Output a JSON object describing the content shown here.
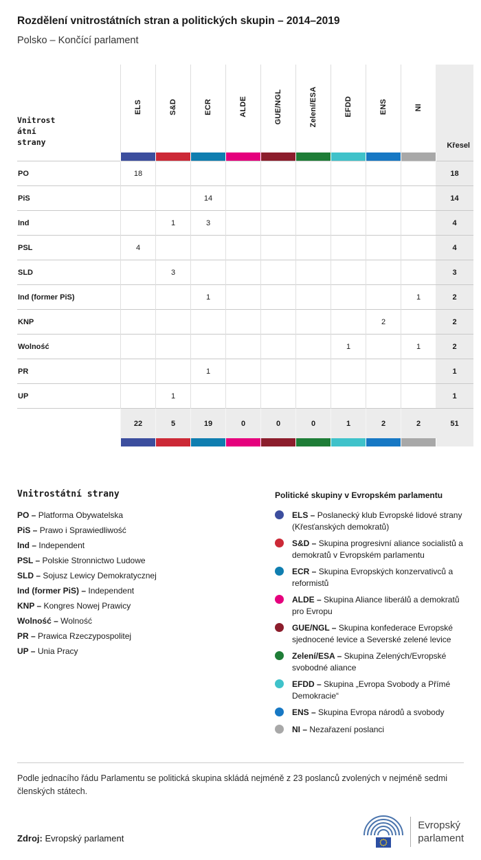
{
  "header": {
    "title": "Rozdělení vnitrostátních stran a politických skupin – 2014–2019",
    "subtitle": "Polsko – Končící parlament"
  },
  "chart_data": {
    "type": "table",
    "title": "Rozdělení vnitrostátních stran a politických skupin – 2014–2019",
    "subtitle": "Polsko – Končící parlament",
    "corner_label_lines": [
      "Vnitrost",
      "átní",
      "strany"
    ],
    "seats_label": "Křesel",
    "columns": [
      {
        "label": "ELS",
        "color": "#3c4e9e"
      },
      {
        "label": "S&D",
        "color": "#cc2937"
      },
      {
        "label": "ECR",
        "color": "#0f7eb0"
      },
      {
        "label": "ALDE",
        "color": "#e5007d"
      },
      {
        "label": "GUE/NGL",
        "color": "#8c1d2c"
      },
      {
        "label": "Zelení/ESA",
        "color": "#1e7d37"
      },
      {
        "label": "EFDD",
        "color": "#3fc2ca"
      },
      {
        "label": "ENS",
        "color": "#1778c4"
      },
      {
        "label": "NI",
        "color": "#a8a8a8"
      }
    ],
    "rows": [
      {
        "party": "PO",
        "values": [
          "18",
          "",
          "",
          "",
          "",
          "",
          "",
          "",
          ""
        ],
        "total": "18"
      },
      {
        "party": "PiS",
        "values": [
          "",
          "",
          "14",
          "",
          "",
          "",
          "",
          "",
          ""
        ],
        "total": "14"
      },
      {
        "party": "Ind",
        "values": [
          "",
          "1",
          "3",
          "",
          "",
          "",
          "",
          "",
          ""
        ],
        "total": "4"
      },
      {
        "party": "PSL",
        "values": [
          "4",
          "",
          "",
          "",
          "",
          "",
          "",
          "",
          ""
        ],
        "total": "4"
      },
      {
        "party": "SLD",
        "values": [
          "",
          "3",
          "",
          "",
          "",
          "",
          "",
          "",
          ""
        ],
        "total": "3"
      },
      {
        "party": "Ind (former PiS)",
        "values": [
          "",
          "",
          "1",
          "",
          "",
          "",
          "",
          "",
          "1"
        ],
        "total": "2"
      },
      {
        "party": "KNP",
        "values": [
          "",
          "",
          "",
          "",
          "",
          "",
          "",
          "2",
          ""
        ],
        "total": "2"
      },
      {
        "party": "Wolność",
        "values": [
          "",
          "",
          "",
          "",
          "",
          "",
          "1",
          "",
          "1"
        ],
        "total": "2"
      },
      {
        "party": "PR",
        "values": [
          "",
          "",
          "1",
          "",
          "",
          "",
          "",
          "",
          ""
        ],
        "total": "1"
      },
      {
        "party": "UP",
        "values": [
          "",
          "1",
          "",
          "",
          "",
          "",
          "",
          "",
          ""
        ],
        "total": "1"
      }
    ],
    "column_totals": [
      "22",
      "5",
      "19",
      "0",
      "0",
      "0",
      "1",
      "2",
      "2"
    ],
    "grand_total": "51"
  },
  "legend_parties": {
    "title": "Vnitrostátní strany",
    "items": [
      {
        "abbr": "PO –",
        "name": "Platforma Obywatelska"
      },
      {
        "abbr": "PiS –",
        "name": "Prawo i Sprawiedliwość"
      },
      {
        "abbr": "Ind –",
        "name": "Independent"
      },
      {
        "abbr": "PSL –",
        "name": "Polskie Stronnictwo Ludowe"
      },
      {
        "abbr": "SLD –",
        "name": "Sojusz Lewicy Demokratycznej"
      },
      {
        "abbr": "Ind (former PiS) –",
        "name": "Independent"
      },
      {
        "abbr": "KNP –",
        "name": "Kongres Nowej Prawicy"
      },
      {
        "abbr": "Wolność –",
        "name": "Wolność"
      },
      {
        "abbr": "PR –",
        "name": "Prawica Rzeczypospolitej"
      },
      {
        "abbr": "UP –",
        "name": "Unia Pracy"
      }
    ]
  },
  "legend_groups": {
    "title": "Politické skupiny v Evropském parlamentu",
    "items": [
      {
        "abbr": "ELS –",
        "name": "Poslanecký klub Evropské lidové strany (Křesťanských demokratů)",
        "color": "#3c4e9e"
      },
      {
        "abbr": "S&D –",
        "name": "Skupina progresivní aliance socialistů a demokratů v Evropském parlamentu",
        "color": "#cc2937"
      },
      {
        "abbr": "ECR –",
        "name": "Skupina Evropských konzervativců a reformistů",
        "color": "#0f7eb0"
      },
      {
        "abbr": "ALDE –",
        "name": "Skupina Aliance liberálů a demokratů pro Evropu",
        "color": "#e5007d"
      },
      {
        "abbr": "GUE/NGL –",
        "name": "Skupina konfederace Evropské sjednocené levice a Severské zelené levice",
        "color": "#8c1d2c"
      },
      {
        "abbr": "Zelení/ESA –",
        "name": "Skupina Zelených/Evropské svobodné aliance",
        "color": "#1e7d37"
      },
      {
        "abbr": "EFDD –",
        "name": "Skupina „Evropa Svobody a Přímé Demokracie“",
        "color": "#3fc2ca"
      },
      {
        "abbr": "ENS –",
        "name": "Skupina Evropa národů a svobody",
        "color": "#1778c4"
      },
      {
        "abbr": "NI –",
        "name": "Nezařazení poslanci",
        "color": "#a8a8a8"
      }
    ]
  },
  "footer": {
    "note": "Podle jednacího řádu Parlamentu se politická skupina skládá nejméně z 23 poslanců zvolených v nejméně sedmi členských státech.",
    "source_label": "Zdroj:",
    "source": "Evropský parlament",
    "logo_line1": "Evropský",
    "logo_line2": "parlament"
  }
}
